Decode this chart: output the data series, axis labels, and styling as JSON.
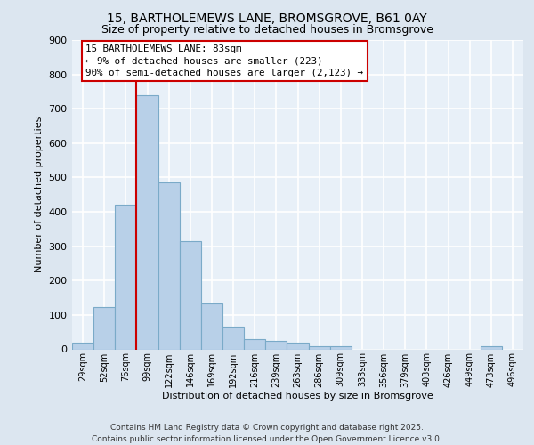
{
  "title1": "15, BARTHOLEMEWS LANE, BROMSGROVE, B61 0AY",
  "title2": "Size of property relative to detached houses in Bromsgrove",
  "xlabel": "Distribution of detached houses by size in Bromsgrove",
  "ylabel": "Number of detached properties",
  "bar_labels": [
    "29sqm",
    "52sqm",
    "76sqm",
    "99sqm",
    "122sqm",
    "146sqm",
    "169sqm",
    "192sqm",
    "216sqm",
    "239sqm",
    "263sqm",
    "286sqm",
    "309sqm",
    "333sqm",
    "356sqm",
    "379sqm",
    "403sqm",
    "426sqm",
    "449sqm",
    "473sqm",
    "496sqm"
  ],
  "bar_values": [
    20,
    122,
    420,
    740,
    485,
    315,
    133,
    65,
    30,
    25,
    20,
    10,
    8,
    0,
    0,
    0,
    0,
    0,
    0,
    8,
    0
  ],
  "bar_color": "#b8d0e8",
  "bar_edge_color": "#7aaac8",
  "vline_x": 2.5,
  "vline_color": "#cc0000",
  "annotation_text": "15 BARTHOLEMEWS LANE: 83sqm\n← 9% of detached houses are smaller (223)\n90% of semi-detached houses are larger (2,123) →",
  "annotation_box_color": "#ffffff",
  "annotation_box_edge": "#cc0000",
  "footer1": "Contains HM Land Registry data © Crown copyright and database right 2025.",
  "footer2": "Contains public sector information licensed under the Open Government Licence v3.0.",
  "bg_color": "#dce6f0",
  "plot_bg_color": "#e8f0f8",
  "grid_color": "#ffffff",
  "ylim": [
    0,
    900
  ]
}
